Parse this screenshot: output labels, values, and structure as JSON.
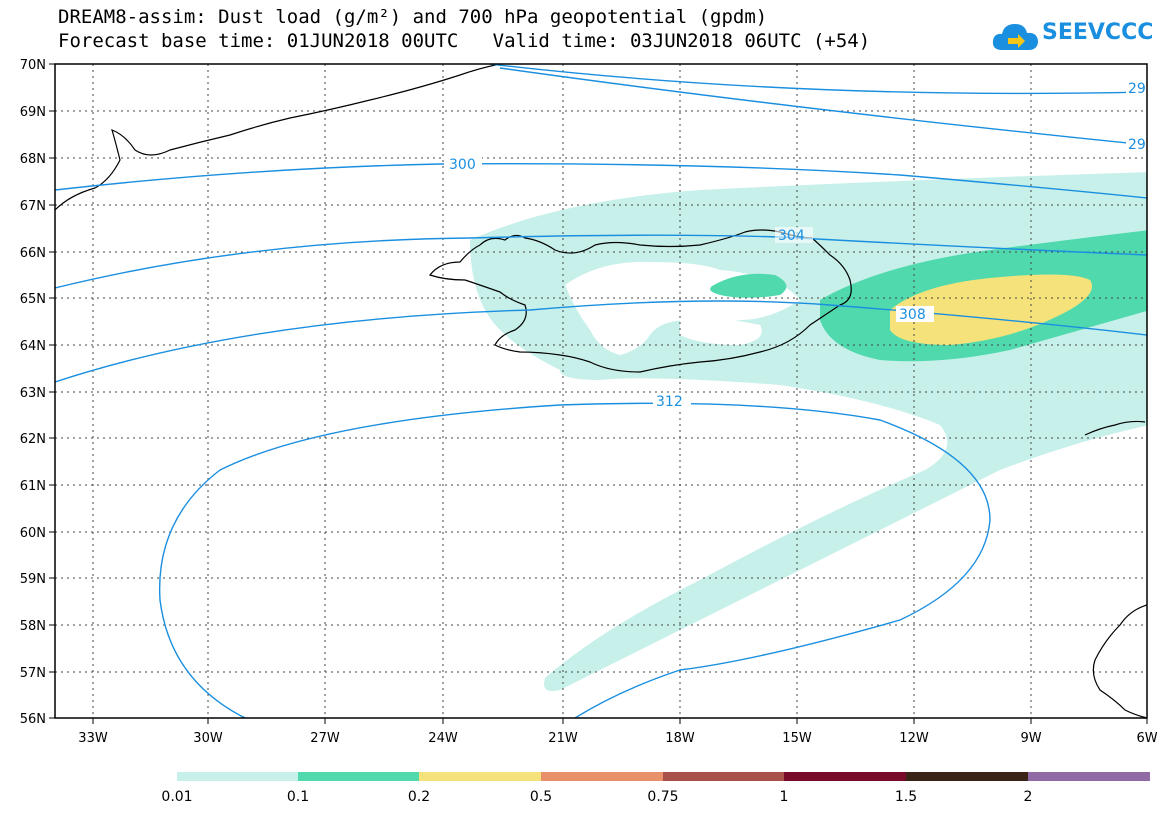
{
  "title": {
    "line1": "DREAM8-assim: Dust load (g/m²) and 700 hPa geopotential (gpdm)",
    "line2": "Forecast base time: 01JUN2018 00UTC   Valid time: 03JUN2018 06UTC (+54)"
  },
  "logo": {
    "text": "SEEVCCC",
    "icon": "cloud-arrow-icon",
    "color": "#1a8fe0"
  },
  "map": {
    "lat_labels": [
      "70N",
      "69N",
      "68N",
      "67N",
      "66N",
      "65N",
      "64N",
      "63N",
      "62N",
      "61N",
      "60N",
      "59N",
      "58N",
      "57N",
      "56N"
    ],
    "lon_labels": [
      "33W",
      "30W",
      "27W",
      "24W",
      "21W",
      "18W",
      "15W",
      "12W",
      "9W",
      "6W"
    ],
    "contour_labels": [
      "300",
      "304",
      "308",
      "312",
      "29",
      "29"
    ],
    "contour_color": "#1a8fe0"
  },
  "colorbar": {
    "colors": [
      "#c7f0ea",
      "#4fd9ad",
      "#f5e27a",
      "#e8906a",
      "#a8504a",
      "#7a0a2a",
      "#3a2418",
      "#8f6aa5"
    ],
    "labels": [
      "0.01",
      "0.1",
      "0.2",
      "0.5",
      "0.75",
      "1",
      "1.5",
      "2"
    ]
  }
}
